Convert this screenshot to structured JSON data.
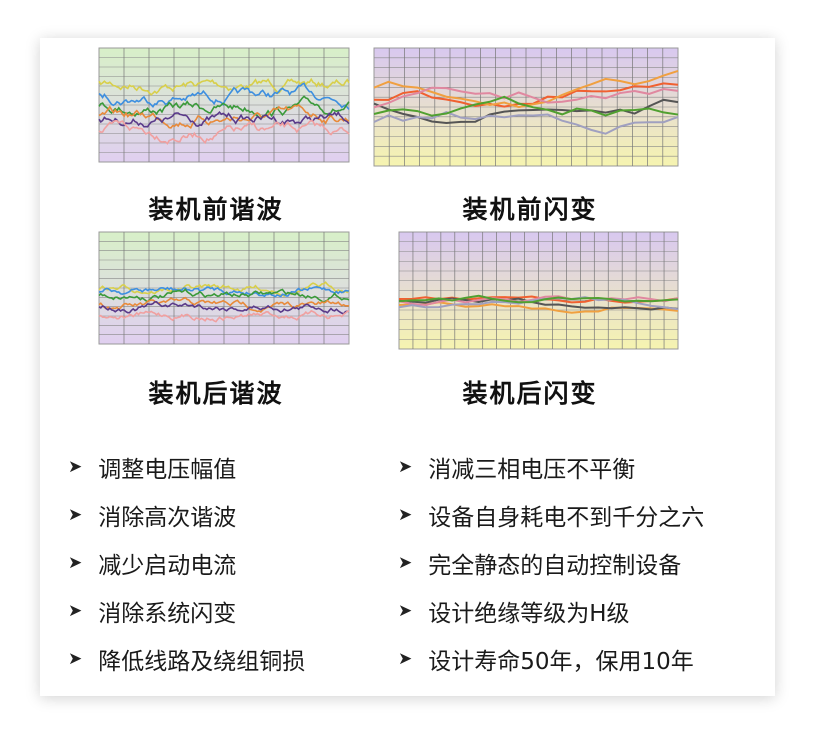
{
  "captions": {
    "harmonic_before": "装机前谐波",
    "flicker_before": "装机前闪变",
    "harmonic_after": "装机后谐波",
    "flicker_after": "装机后闪变"
  },
  "bullets_left": [
    "调整电压幅值",
    "消除高次谐波",
    "减少启动电流",
    "消除系统闪变",
    "降低线路及绕组铜损"
  ],
  "bullets_right": [
    "消减三相电压不平衡",
    "设备自身耗电不到千分之六",
    "完全静态的自动控制设备",
    "设计绝缘等级为H级",
    "设计寿命50年，保用10年"
  ],
  "bullet_icon": "arrow-right-icon",
  "colors": {
    "harmonic_series": [
      "#d8cf4a",
      "#3d8fe0",
      "#3a9a3a",
      "#e88a3a",
      "#5a3a8a",
      "#f0a0a0"
    ],
    "flicker_series": [
      "#f06030",
      "#f0a040",
      "#555555",
      "#e088a0",
      "#a0a0c0",
      "#50a030"
    ]
  }
}
